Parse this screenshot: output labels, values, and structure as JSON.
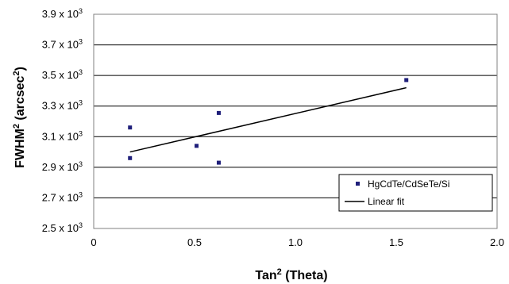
{
  "chart_data": {
    "type": "scatter",
    "xlabel": "Tan",
    "xlabel_sup": "2",
    "xlabel_rest": " (Theta)",
    "ylabel": "FWHM",
    "ylabel_sup": "2",
    "ylabel_rest": " (arcsec",
    "ylabel_sup2": "2",
    "ylabel_end": ")",
    "xlim": [
      0,
      2.0
    ],
    "ylim": [
      2500,
      3900
    ],
    "x_ticks": [
      {
        "value": 0,
        "label": "0"
      },
      {
        "value": 0.5,
        "label": "0.5"
      },
      {
        "value": 1.0,
        "label": "1.0"
      },
      {
        "value": 1.5,
        "label": "1.5"
      },
      {
        "value": 2.0,
        "label": "2.0"
      }
    ],
    "y_ticks": [
      {
        "value": 2500,
        "mantissa": "2.5 x 10",
        "exp": "3"
      },
      {
        "value": 2700,
        "mantissa": "2.7 x 10",
        "exp": "3"
      },
      {
        "value": 2900,
        "mantissa": "2.9 x 10",
        "exp": "3"
      },
      {
        "value": 3100,
        "mantissa": "3.1 x 10",
        "exp": "3"
      },
      {
        "value": 3300,
        "mantissa": "3.3 x 10",
        "exp": "3"
      },
      {
        "value": 3500,
        "mantissa": "3.5 x 10",
        "exp": "3"
      },
      {
        "value": 3700,
        "mantissa": "3.7 x 10",
        "exp": "3"
      },
      {
        "value": 3900,
        "mantissa": "3.9 x 10",
        "exp": "3"
      }
    ],
    "grid_y": true,
    "grid_x": false,
    "legend_position": "bottom-right",
    "series": [
      {
        "name": "HgCdTe/CdSeTe/Si",
        "marker": "square",
        "color": "#1f1f7a",
        "points": [
          {
            "x": 0.18,
            "y": 3160
          },
          {
            "x": 0.18,
            "y": 2960
          },
          {
            "x": 0.51,
            "y": 3040
          },
          {
            "x": 0.62,
            "y": 3255
          },
          {
            "x": 0.62,
            "y": 2930
          },
          {
            "x": 1.55,
            "y": 3470
          }
        ]
      },
      {
        "name": "Linear fit",
        "type": "line",
        "color": "#000000",
        "points": [
          {
            "x": 0.18,
            "y": 3000
          },
          {
            "x": 1.55,
            "y": 3420
          }
        ]
      }
    ]
  }
}
